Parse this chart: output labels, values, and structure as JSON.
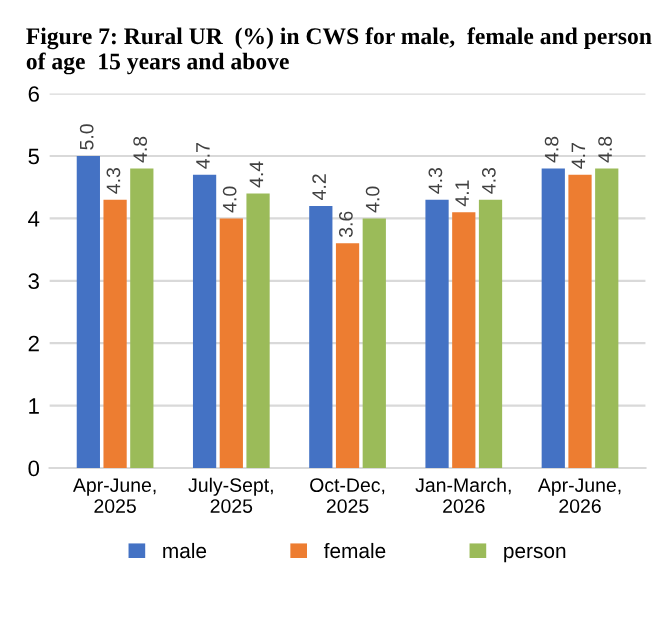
{
  "chart_data": {
    "type": "bar",
    "title": "Figure 7: Rural UR  (%) in CWS for male,  female and person  of age  15 years and above",
    "categories": [
      "Apr-June,\n2025",
      "July-Sept,\n2025",
      "Oct-Dec,\n2025",
      "Jan-March,\n2026",
      "Apr-June,\n2026"
    ],
    "series": [
      {
        "name": "male",
        "color": "#4472c4",
        "values": [
          5.0,
          4.7,
          4.2,
          4.3,
          4.8
        ],
        "value_labels": [
          "5.0",
          "4.7",
          "4.2",
          "4.3",
          "4.8"
        ]
      },
      {
        "name": "female",
        "color": "#ed7d31",
        "values": [
          4.3,
          4.0,
          3.6,
          4.1,
          4.7
        ],
        "value_labels": [
          "4.3",
          "4.0",
          "3.6",
          "4.1",
          "4.7"
        ]
      },
      {
        "name": "person",
        "color": "#9bbb59",
        "values": [
          4.8,
          4.4,
          4.0,
          4.3,
          4.8
        ],
        "value_labels": [
          "4.8",
          "4.4",
          "4.0",
          "4.3",
          "4.8"
        ]
      }
    ],
    "ylim": [
      0,
      6
    ],
    "yticks": [
      0,
      1,
      2,
      3,
      4,
      5,
      6
    ],
    "grid": "y",
    "legend": "bottom"
  }
}
